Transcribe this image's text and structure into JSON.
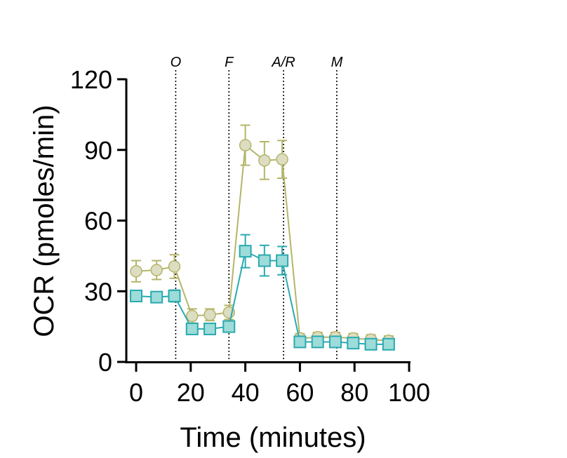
{
  "chart_data": {
    "type": "line",
    "title": "",
    "xlabel": "Time (minutes)",
    "ylabel": "OCR (pmoles/min)",
    "xlim": [
      0,
      100
    ],
    "ylim": [
      0,
      120
    ],
    "x_ticks": [
      0,
      20,
      40,
      60,
      80,
      100
    ],
    "y_ticks": [
      0,
      30,
      60,
      90,
      120
    ],
    "grid": false,
    "legend": "none",
    "markers": [
      {
        "label": "O",
        "x": 14.5
      },
      {
        "label": "F",
        "x": 34
      },
      {
        "label": "A/R",
        "x": 54
      },
      {
        "label": "M",
        "x": 73.5
      }
    ],
    "series": [
      {
        "color": "#b5b56a",
        "marker_fill": "#ddddc2",
        "marker": "circle",
        "x": [
          0,
          7.5,
          14,
          20.5,
          27,
          34,
          40,
          47,
          53.5,
          60,
          66.5,
          73,
          79.5,
          86,
          92.5
        ],
        "y": [
          38.5,
          39,
          40.5,
          19.5,
          20,
          21,
          92,
          85.5,
          86,
          10,
          10.5,
          10.5,
          10,
          9.5,
          9
        ],
        "err": [
          4.5,
          4,
          5,
          3,
          2.5,
          3,
          8.5,
          8,
          8,
          2,
          2,
          2,
          2,
          2,
          2
        ]
      },
      {
        "color": "#2aaab0",
        "marker_fill": "#9ddcd9",
        "marker": "square",
        "x": [
          0,
          7.5,
          14,
          20.5,
          27,
          34,
          40,
          47,
          53.5,
          60,
          66.5,
          73,
          79.5,
          86,
          92.5
        ],
        "y": [
          28,
          27.5,
          28,
          14,
          14,
          15,
          47,
          43,
          43,
          8.5,
          8.5,
          8.5,
          8,
          7.5,
          7.5
        ],
        "err": [
          2,
          1.5,
          2.5,
          2,
          2,
          2,
          7,
          6.5,
          6,
          2,
          1.5,
          1.5,
          1.5,
          1.5,
          1.5
        ]
      }
    ]
  }
}
